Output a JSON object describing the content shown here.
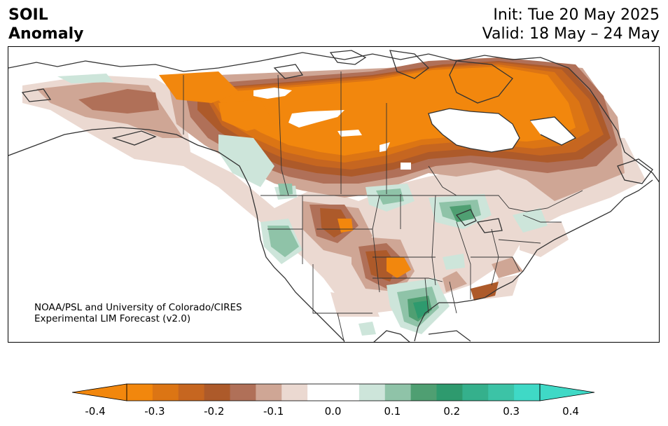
{
  "title": {
    "line1": "SOIL",
    "line2": "Anomaly"
  },
  "dates": {
    "init": "Init: Tue 20 May 2025",
    "valid": "Valid: 18 May – 24 May"
  },
  "credit": {
    "line1": "NOAA/PSL and University of Colorado/CIRES",
    "line2": "Experimental LIM Forecast (v2.0)"
  },
  "colorbar": {
    "min": -0.4,
    "max": 0.4,
    "step": 0.05,
    "extend": "both",
    "tick_labels": [
      "-0.4",
      "-0.3",
      "-0.2",
      "-0.1",
      "0.0",
      "0.1",
      "0.2",
      "0.3",
      "0.4"
    ],
    "colors": [
      "#f2870d",
      "#dc7514",
      "#c66620",
      "#ad5a2a",
      "#b07058",
      "#cfa695",
      "#ebd9d1",
      "#ffffff",
      "#ffffff",
      "#cde5da",
      "#8fc3a8",
      "#4f9f72",
      "#2e9a6e",
      "#35b08c",
      "#3cc3a6",
      "#3fd9c6"
    ]
  }
}
